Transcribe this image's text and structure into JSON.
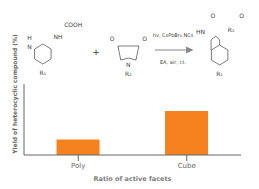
{
  "chart_data": {
    "type": "bar",
    "categories": [
      "Poly",
      "Cube"
    ],
    "values": [
      0.22,
      0.62
    ],
    "color": "#F5821F",
    "xlabel": "Ratio of active facets",
    "ylabel": "Yield of heterocyclic compound (%)",
    "ylim": [
      0,
      1.0
    ],
    "yticks": [],
    "tick_labels": "x",
    "annotations": [
      "H",
      "N",
      "R₁",
      "NH",
      "COOH",
      "+",
      "O",
      "O",
      "N",
      "R₂",
      "hv, CsPbBr₃ NCs",
      "EA, air, r.t.",
      "O",
      "O",
      "R₂",
      "HN",
      "R₁"
    ]
  }
}
